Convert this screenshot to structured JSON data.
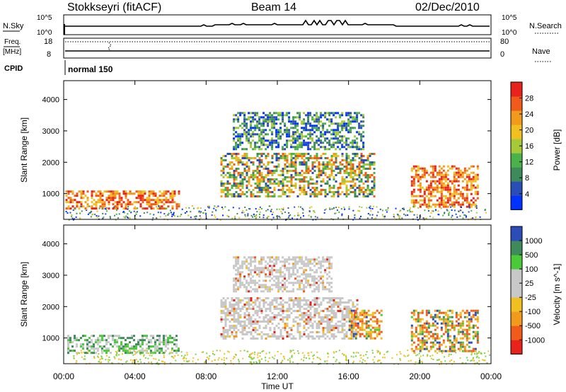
{
  "header": {
    "station": "Stokkseyri (fitACF)",
    "beam": "Beam 14",
    "date": "02/Dec/2010"
  },
  "top_panels": {
    "nsky_label": "N.Sky",
    "nsearch_label": "N.Search",
    "nsky_ticks": [
      "10^5",
      "10^0"
    ],
    "nsearch_ticks": [
      "10^5",
      "10^0"
    ],
    "freq_label_1": "Freq.",
    "freq_label_2": "[MHz]",
    "freq_ticks": [
      "18",
      "8"
    ],
    "nave_label": "Nave",
    "nave_ticks": [
      "80",
      "0"
    ],
    "cpid_label": "CPID",
    "cpid_value": "normal 150"
  },
  "chart_data": [
    {
      "type": "heatmap",
      "panel": "power",
      "ylabel": "Slant Range [km]",
      "xlabel": "Time UT",
      "x_ticks": [
        "00:00",
        "04:00",
        "08:00",
        "12:00",
        "16:00",
        "20:00",
        "00:00"
      ],
      "x_range_hours": [
        0,
        24
      ],
      "y_range_km": [
        180,
        4600
      ],
      "y_ticks": [
        1000,
        2000,
        3000,
        4000
      ],
      "colorbar_label": "Power [dB]",
      "colorbar_ticks": [
        "28",
        "24",
        "20",
        "16",
        "12",
        "8",
        "4"
      ],
      "colorbar_colors": [
        "#0033ff",
        "#2b4db8",
        "#3f8a5a",
        "#4bb24b",
        "#a6c93a",
        "#f0c020",
        "#f29a1c",
        "#f05a1a",
        "#e8231b"
      ],
      "regions": [
        {
          "t0": 0.1,
          "t1": 6.5,
          "r0": 500,
          "r1": 1100,
          "level": "high"
        },
        {
          "t0": 8.8,
          "t1": 17.5,
          "r0": 900,
          "r1": 2300,
          "level": "mixed"
        },
        {
          "t0": 9.5,
          "t1": 16.8,
          "r0": 2400,
          "r1": 3600,
          "level": "low"
        },
        {
          "t0": 19.5,
          "t1": 23.2,
          "r0": 600,
          "r1": 1900,
          "level": "high"
        }
      ]
    },
    {
      "type": "heatmap",
      "panel": "velocity",
      "ylabel": "Slant Range [km]",
      "xlabel": "Time UT",
      "x_ticks": [
        "00:00",
        "04:00",
        "08:00",
        "12:00",
        "16:00",
        "20:00",
        "00:00"
      ],
      "x_range_hours": [
        0,
        24
      ],
      "y_range_km": [
        180,
        4600
      ],
      "y_ticks": [
        1000,
        2000,
        3000,
        4000
      ],
      "colorbar_label": "Velocity [m s^-1]",
      "colorbar_ticks": [
        "1000",
        "500",
        "100",
        "25",
        "-25",
        "-100",
        "-500",
        "-1000"
      ],
      "colorbar_colors": [
        "#e8231b",
        "#f05a1a",
        "#f29a1c",
        "#f0c020",
        "#c8c8c8",
        "#c8c8c8",
        "#4bc93a",
        "#3f8a5a",
        "#2b4db8"
      ],
      "regions": [
        {
          "t0": 0.2,
          "t1": 6.5,
          "r0": 500,
          "r1": 1100,
          "level": "green"
        },
        {
          "t0": 8.8,
          "t1": 16.5,
          "r0": 1000,
          "r1": 2300,
          "level": "gray"
        },
        {
          "t0": 9.5,
          "t1": 15.0,
          "r0": 2500,
          "r1": 3600,
          "level": "gray"
        },
        {
          "t0": 16.0,
          "t1": 17.8,
          "r0": 1000,
          "r1": 1900,
          "level": "orange"
        },
        {
          "t0": 19.5,
          "t1": 23.2,
          "r0": 600,
          "r1": 1900,
          "level": "orange"
        }
      ]
    }
  ]
}
